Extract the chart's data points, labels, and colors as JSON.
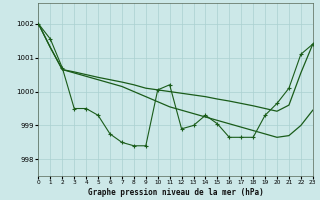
{
  "title": "Graphe pression niveau de la mer (hPa)",
  "bg_color": "#cce8e8",
  "grid_color": "#aad0d0",
  "line_color": "#1a5c1a",
  "xlim": [
    0,
    23
  ],
  "ylim": [
    997.5,
    1002.6
  ],
  "yticks": [
    998,
    999,
    1000,
    1001,
    1002
  ],
  "xticks": [
    0,
    1,
    2,
    3,
    4,
    5,
    6,
    7,
    8,
    9,
    10,
    11,
    12,
    13,
    14,
    15,
    16,
    17,
    18,
    19,
    20,
    21,
    22,
    23
  ],
  "y_zigzag": [
    1002.0,
    1001.55,
    1000.7,
    999.5,
    999.5,
    999.3,
    998.75,
    998.5,
    998.4,
    998.4,
    1000.05,
    1000.2,
    998.9,
    999.0,
    999.3,
    999.05,
    998.65,
    998.65,
    998.65,
    999.3,
    999.65,
    1000.1,
    1001.1,
    1001.4
  ],
  "y_diag_down": [
    1002.0,
    1001.3,
    1000.65,
    1000.55,
    1000.45,
    1000.35,
    1000.25,
    1000.15,
    1000.0,
    999.85,
    999.7,
    999.55,
    999.45,
    999.35,
    999.25,
    999.15,
    999.05,
    998.95,
    998.85,
    998.75,
    998.65,
    998.7,
    999.0,
    999.45
  ],
  "y_rising": [
    1002.0,
    1001.3,
    1000.65,
    1000.58,
    1000.5,
    1000.42,
    1000.35,
    1000.28,
    1000.2,
    1000.1,
    1000.05,
    1000.0,
    999.95,
    999.9,
    999.85,
    999.78,
    999.72,
    999.65,
    999.58,
    999.5,
    999.42,
    999.6,
    1000.55,
    1001.4
  ]
}
